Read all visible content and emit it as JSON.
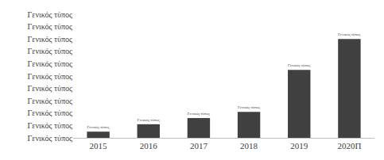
{
  "chart_data": {
    "type": "bar",
    "categories": [
      "2015",
      "2016",
      "2017",
      "2018",
      "2019",
      "2020Π"
    ],
    "values": [
      0.5,
      1.1,
      1.6,
      2.1,
      5.5,
      8.0
    ],
    "value_labels": [
      "Γενικός τύπος",
      "Γενικός τύπος",
      "Γενικός τύπος",
      "Γενικός τύπος",
      "Γενικός τύπος",
      "Γενικός τύπος"
    ],
    "color": "#404040",
    "ylim": [
      0,
      10
    ],
    "yticks": [
      {
        "value": 0,
        "label": "Γενικός τύπος"
      },
      {
        "value": 1,
        "label": "Γενικός τύπος"
      },
      {
        "value": 2,
        "label": "Γενικός τύπος"
      },
      {
        "value": 3,
        "label": "Γενικός τύπος"
      },
      {
        "value": 4,
        "label": "Γενικός τύπος"
      },
      {
        "value": 5,
        "label": "Γενικός τύπος"
      },
      {
        "value": 6,
        "label": "Γενικός τύπος"
      },
      {
        "value": 7,
        "label": "Γενικός τύπος"
      },
      {
        "value": 8,
        "label": "Γενικός τύπος"
      },
      {
        "value": 9,
        "label": "Γενικός τύπος"
      },
      {
        "value": 10,
        "label": "Γενικός τύπος"
      }
    ],
    "grid": false,
    "data_labels": true
  }
}
